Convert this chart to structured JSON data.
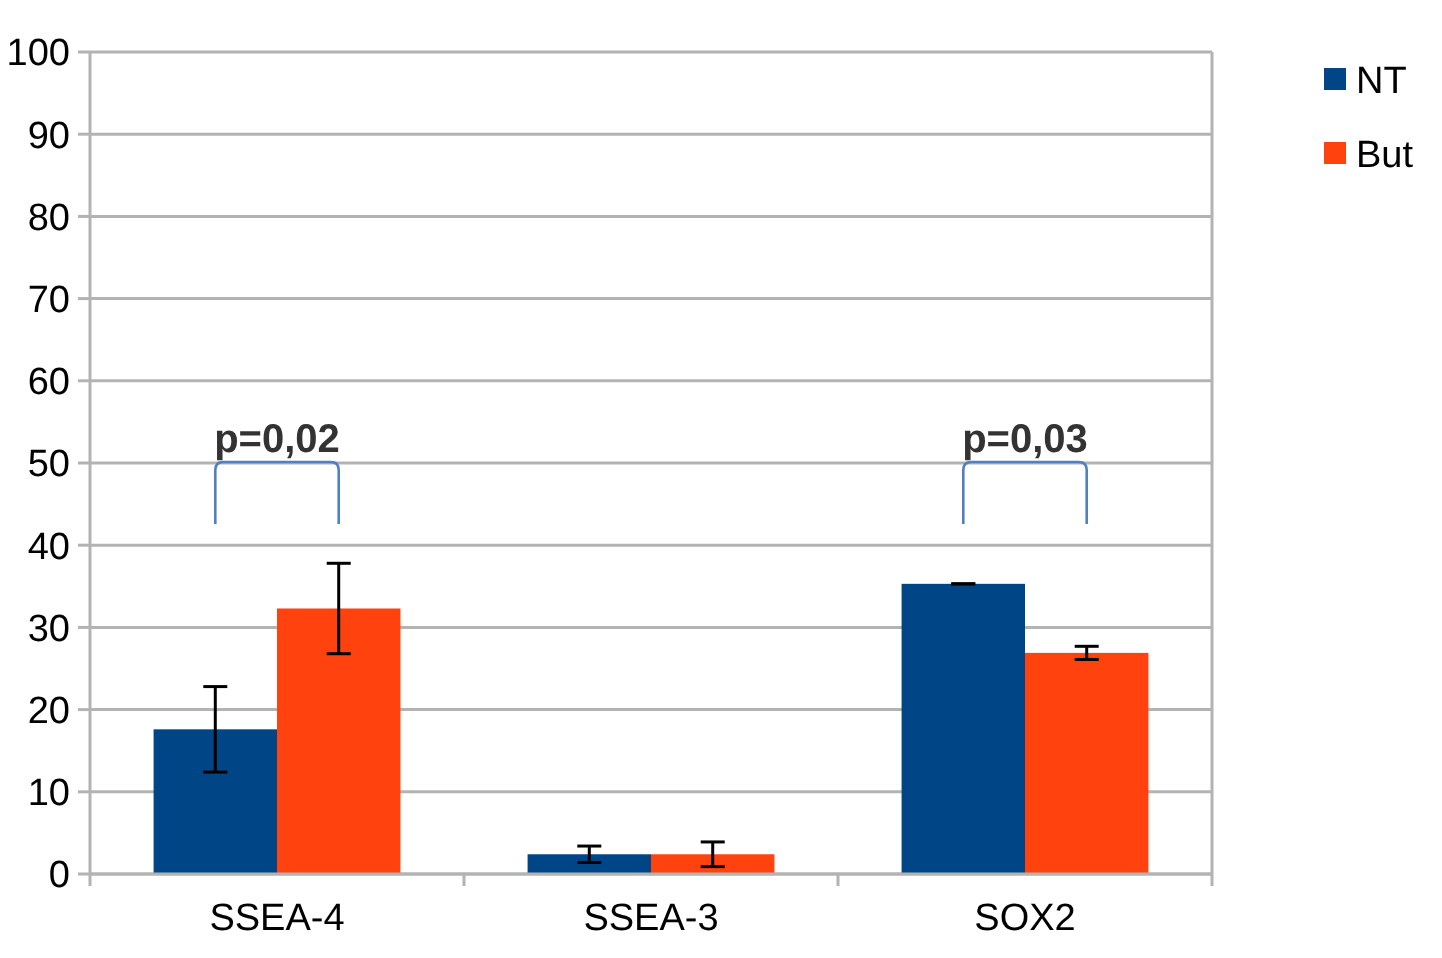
{
  "chart_data": {
    "type": "bar",
    "categories": [
      "SSEA-4",
      "SSEA-3",
      "SOX2"
    ],
    "series": [
      {
        "name": "NT",
        "color": "#004586",
        "values": [
          17.6,
          2.4,
          35.3
        ],
        "errors": [
          5.2,
          1,
          0
        ]
      },
      {
        "name": "But",
        "color": "#ff420e",
        "values": [
          32.3,
          2.4,
          26.9
        ],
        "errors": [
          5.5,
          1.5,
          0.8
        ]
      }
    ],
    "ylim": [
      0,
      100
    ],
    "yticks": [
      0,
      10,
      20,
      30,
      40,
      50,
      60,
      70,
      80,
      90,
      100
    ],
    "grid": "y",
    "legend": "top right",
    "annotations": [
      "p=0,02",
      "p=0,03"
    ]
  }
}
